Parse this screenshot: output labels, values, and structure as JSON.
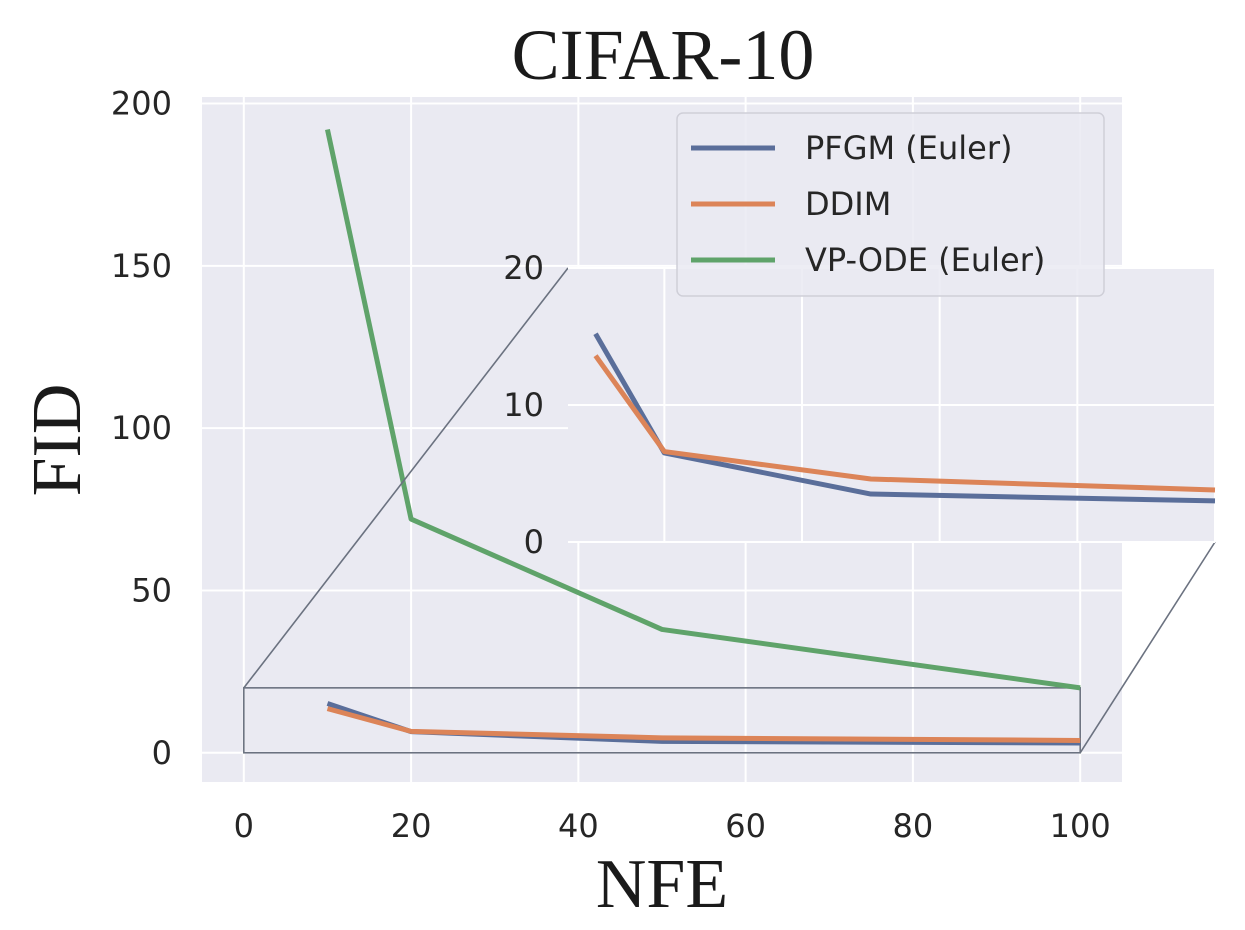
{
  "chart_data": [
    {
      "type": "line",
      "title": "CIFAR-10",
      "xlabel": "NFE",
      "ylabel": "FID",
      "xlim": [
        -5,
        105
      ],
      "ylim": [
        -9,
        202
      ],
      "xticks": [
        0,
        20,
        40,
        60,
        80,
        100
      ],
      "yticks": [
        0,
        50,
        100,
        150,
        200
      ],
      "grid": true,
      "legend": "top-right",
      "series": [
        {
          "name": "PFGM (Euler)",
          "color": "#5a6e9a",
          "x": [
            10,
            20,
            50,
            100
          ],
          "y": [
            15.2,
            6.5,
            3.5,
            3.0
          ]
        },
        {
          "name": "DDIM",
          "color": "#dc8458",
          "x": [
            10,
            20,
            50,
            100
          ],
          "y": [
            13.6,
            6.6,
            4.6,
            3.8
          ]
        },
        {
          "name": "VP-ODE (Euler)",
          "color": "#5fa36a",
          "x": [
            10,
            20,
            50,
            100
          ],
          "y": [
            192,
            72,
            38,
            20
          ]
        }
      ]
    },
    {
      "type": "line",
      "title": "",
      "xlabel": "",
      "ylabel": "",
      "inset_of": 0,
      "zoom_region": {
        "x": [
          0,
          100
        ],
        "y": [
          0,
          20
        ]
      },
      "xlim": [
        6,
        100
      ],
      "ylim": [
        0,
        20
      ],
      "xticks": [],
      "yticks": [
        0,
        10,
        20
      ],
      "grid": true,
      "series": [
        {
          "name": "PFGM (Euler)",
          "color": "#5a6e9a",
          "x": [
            10,
            20,
            50,
            100
          ],
          "y": [
            15.2,
            6.5,
            3.5,
            3.0
          ]
        },
        {
          "name": "DDIM",
          "color": "#dc8458",
          "x": [
            10,
            20,
            50,
            100
          ],
          "y": [
            13.6,
            6.6,
            4.6,
            3.8
          ]
        }
      ]
    }
  ]
}
